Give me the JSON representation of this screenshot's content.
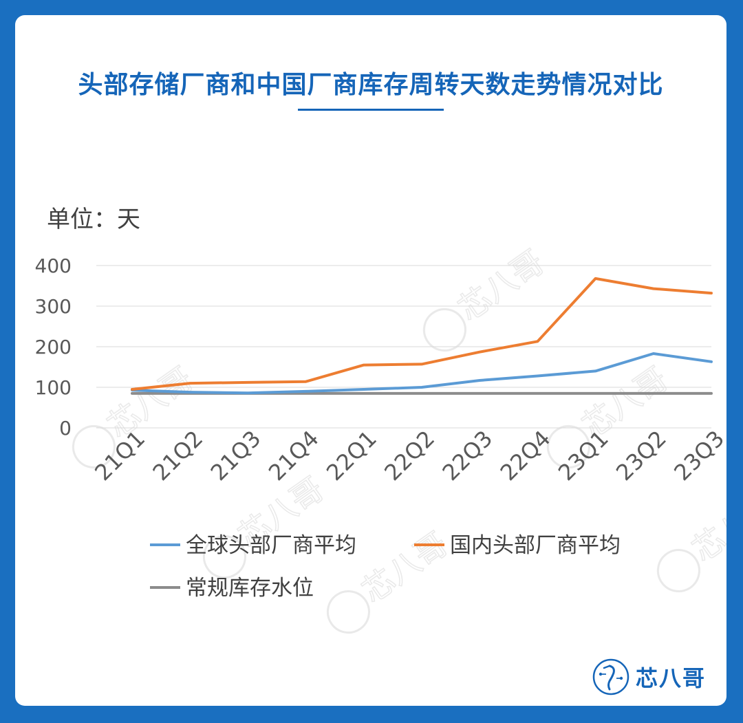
{
  "title": "头部存储厂商和中国厂商库存周转天数走势情况对比",
  "brand": {
    "name": "芯八哥",
    "logo_icon": "heron-logo-icon",
    "watermark_text": "芯八哥"
  },
  "colors": {
    "frame": "#1a6fc0",
    "title": "#1565b8",
    "global_series": "#5b9bd5",
    "domestic_series": "#ed7d31",
    "baseline_series": "#8c8c8c"
  },
  "chart_data": {
    "type": "line",
    "unit_label": "单位：天",
    "categories": [
      "21Q1",
      "21Q2",
      "21Q3",
      "21Q4",
      "22Q1",
      "22Q2",
      "22Q3",
      "22Q4",
      "23Q1",
      "23Q2",
      "23Q3"
    ],
    "y_ticks": [
      "400",
      "300",
      "200",
      "100",
      "0"
    ],
    "ylim": [
      0,
      400
    ],
    "grid": true,
    "legend_position": "bottom",
    "series": [
      {
        "name": "全球头部厂商平均",
        "color": "#5b9bd5",
        "values": [
          93,
          88,
          86,
          90,
          95,
          100,
          117,
          128,
          140,
          183,
          163
        ]
      },
      {
        "name": "国内头部厂商平均",
        "color": "#ed7d31",
        "values": [
          95,
          110,
          112,
          114,
          155,
          157,
          187,
          213,
          368,
          343,
          332
        ]
      },
      {
        "name": "常规库存水位",
        "color": "#8c8c8c",
        "values": [
          85,
          85,
          85,
          85,
          85,
          85,
          85,
          85,
          85,
          85,
          85
        ]
      }
    ]
  }
}
